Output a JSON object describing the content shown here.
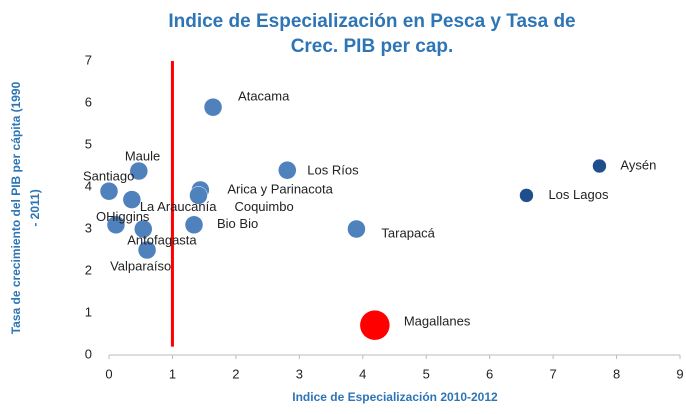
{
  "chart_data": {
    "type": "scatter",
    "title": [
      "Indice de Especialización en Pesca y Tasa de",
      "Crec. PIB per cap."
    ],
    "x_label": "Indice de Especialización 2010-2012",
    "y_label": [
      "Tasa de crecimiento del PIB per cápita (1990",
      "- 2011)"
    ],
    "labels": [
      "Atacama",
      "Maule",
      "Santiago",
      "La Araucanía",
      "OHiggins",
      "Antofagasta",
      "Valparaíso",
      "Arica y Parinacota",
      "Coquimbo",
      "Bio Bio",
      "Los Ríos",
      "Tarapacá",
      "Magallanes",
      "Aysén",
      "Los Lagos"
    ],
    "x": [
      1.64,
      0.47,
      0.0,
      0.36,
      0.11,
      0.54,
      0.6,
      1.44,
      1.41,
      1.34,
      2.81,
      3.9,
      4.19,
      7.73,
      6.58
    ],
    "values": [
      5.9,
      4.38,
      3.9,
      3.7,
      3.1,
      3.0,
      2.5,
      3.93,
      3.8,
      3.1,
      4.4,
      3.0,
      0.71,
      4.5,
      3.8
    ],
    "sizes": [
      9,
      9,
      9,
      9,
      9,
      9,
      9,
      9,
      9,
      9,
      9,
      9,
      15,
      7,
      7
    ],
    "colors": [
      "#4f81bd",
      "#4f81bd",
      "#4f81bd",
      "#4f81bd",
      "#4f81bd",
      "#4f81bd",
      "#4f81bd",
      "#4f81bd",
      "#4f81bd",
      "#4f81bd",
      "#4f81bd",
      "#4f81bd",
      "#ff0000",
      "#1f4e8c",
      "#1f4e8c"
    ],
    "reference_line": {
      "x": 1,
      "y_range": [
        0.2,
        7
      ],
      "color": "#ff0000"
    },
    "xlim": [
      0,
      9
    ],
    "xticks": [
      0,
      1,
      2,
      3,
      4,
      5,
      6,
      7,
      8,
      9
    ],
    "ylim": [
      0,
      7
    ],
    "yticks": [
      0,
      1,
      2,
      3,
      4,
      5,
      6,
      7
    ],
    "grid": false
  }
}
